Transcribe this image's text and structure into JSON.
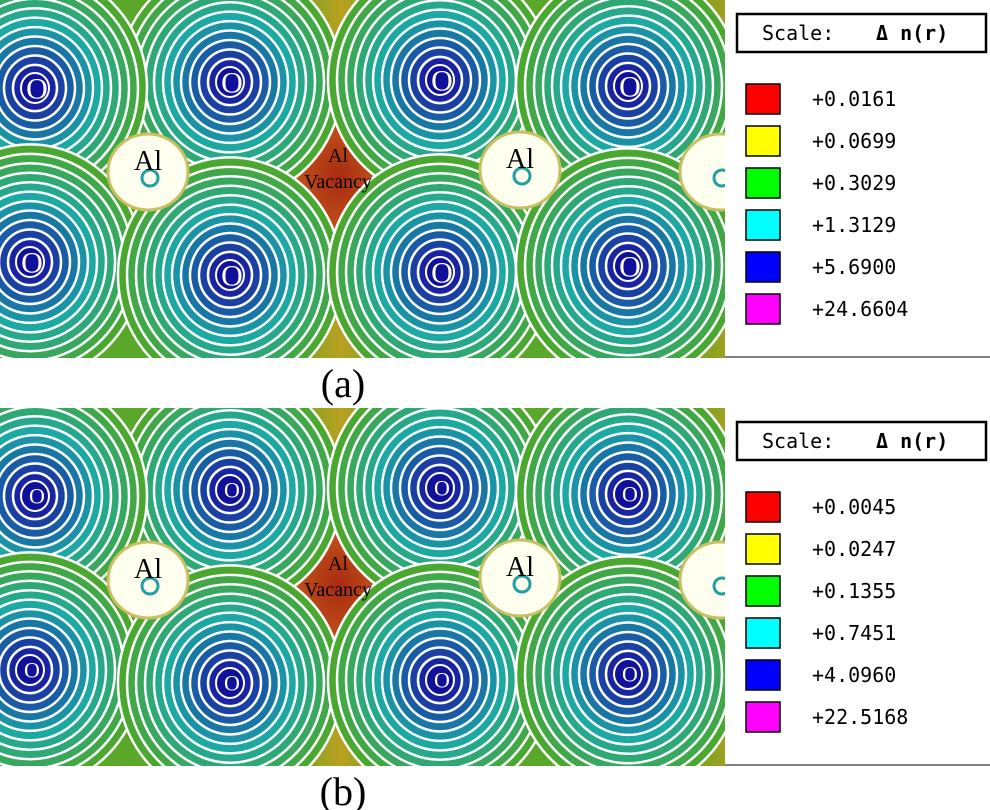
{
  "panels": [
    {
      "label": "(a)",
      "o_labels": [
        "O",
        "O",
        "O",
        "O",
        "O",
        "O",
        "O",
        "O"
      ],
      "al_labels": [
        "Al",
        "Al"
      ],
      "vacancy_label": [
        "Al",
        "Vacancy"
      ],
      "legend": {
        "scale_title": "Scale:",
        "scale_symbol": "Δ n(r)",
        "entries": [
          {
            "color": "#ff0000",
            "value": "+0.0161"
          },
          {
            "color": "#ffff00",
            "value": "+0.0699"
          },
          {
            "color": "#00ff00",
            "value": "+0.3029"
          },
          {
            "color": "#00ffff",
            "value": "+1.3129"
          },
          {
            "color": "#0000ff",
            "value": "+5.6900"
          },
          {
            "color": "#ff00ff",
            "value": "+24.6604"
          }
        ]
      }
    },
    {
      "label": "(b)",
      "o_labels": [
        "O",
        "O",
        "O",
        "O",
        "O",
        "O",
        "O",
        "O"
      ],
      "al_labels": [
        "Al",
        "Al"
      ],
      "vacancy_label": [
        "Al",
        "Vacancy"
      ],
      "legend": {
        "scale_title": "Scale:",
        "scale_symbol": "Δ n(r)",
        "entries": [
          {
            "color": "#ff0000",
            "value": "+0.0045"
          },
          {
            "color": "#ffff00",
            "value": "+0.0247"
          },
          {
            "color": "#00ff00",
            "value": "+0.1355"
          },
          {
            "color": "#00ffff",
            "value": "+0.7451"
          },
          {
            "color": "#0000ff",
            "value": "+4.0960"
          },
          {
            "color": "#ff00ff",
            "value": "+22.5168"
          }
        ]
      }
    }
  ]
}
